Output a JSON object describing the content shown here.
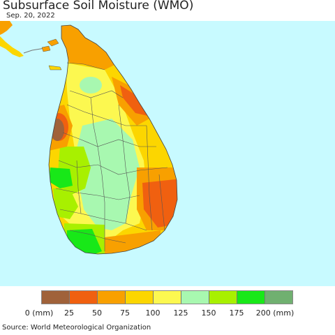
{
  "title": "Subsurface Soil Moisture (WMO)",
  "date": "Sep. 20, 2022",
  "source": "Source: World Meteorological Organization",
  "legend": {
    "colors": [
      "#a0623a",
      "#f06010",
      "#f8a000",
      "#fcd600",
      "#fcf850",
      "#a8f8b0",
      "#a8f000",
      "#18e818",
      "#70b070"
    ],
    "tick_labels": [
      "0 (mm)",
      "25",
      "50",
      "75",
      "100",
      "125",
      "150",
      "175",
      "200 (mm)"
    ]
  },
  "colors": {
    "sea": "#c8faff",
    "land_neighbor": "#f8a000",
    "boundary": "#555555"
  }
}
